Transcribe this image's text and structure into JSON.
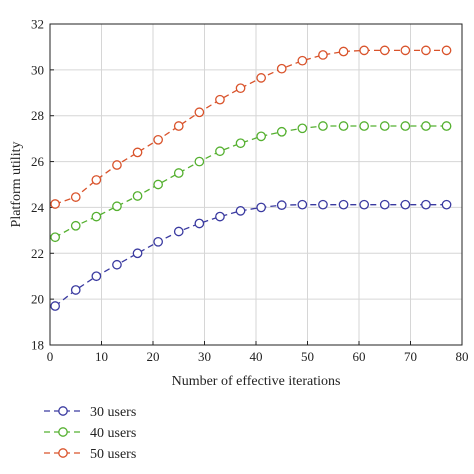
{
  "chart_data": {
    "type": "line",
    "xlabel": "Number of effective iterations",
    "ylabel": "Platform utility",
    "xlim": [
      0,
      80
    ],
    "ylim": [
      18,
      32
    ],
    "xticks": [
      "0",
      "10",
      "20",
      "30",
      "40",
      "50",
      "60",
      "70",
      "80"
    ],
    "yticks": [
      "18",
      "20",
      "22",
      "24",
      "26",
      "28",
      "30",
      "32"
    ],
    "grid": true,
    "legend_position": "bottom-left",
    "marker": "circle",
    "line_style": "dashed",
    "x": [
      1,
      5,
      9,
      13,
      17,
      21,
      25,
      29,
      33,
      37,
      41,
      45,
      49,
      53,
      57,
      61,
      65,
      69,
      73,
      77
    ],
    "series": [
      {
        "name": "30 users",
        "color": "#3a3aa0",
        "values": [
          19.7,
          20.4,
          21.0,
          21.5,
          22.0,
          22.5,
          22.95,
          23.3,
          23.6,
          23.85,
          24.0,
          24.1,
          24.12,
          24.12,
          24.12,
          24.12,
          24.12,
          24.12,
          24.12,
          24.12
        ]
      },
      {
        "name": "40 users",
        "color": "#55b030",
        "values": [
          22.7,
          23.2,
          23.6,
          24.05,
          24.5,
          25.0,
          25.5,
          26.0,
          26.45,
          26.8,
          27.1,
          27.3,
          27.45,
          27.55,
          27.55,
          27.55,
          27.55,
          27.55,
          27.55,
          27.55
        ]
      },
      {
        "name": "50 users",
        "color": "#d9532b",
        "values": [
          24.15,
          24.45,
          25.2,
          25.85,
          26.4,
          26.95,
          27.55,
          28.15,
          28.7,
          29.2,
          29.65,
          30.05,
          30.4,
          30.65,
          30.8,
          30.85,
          30.85,
          30.85,
          30.85,
          30.85
        ]
      }
    ]
  }
}
